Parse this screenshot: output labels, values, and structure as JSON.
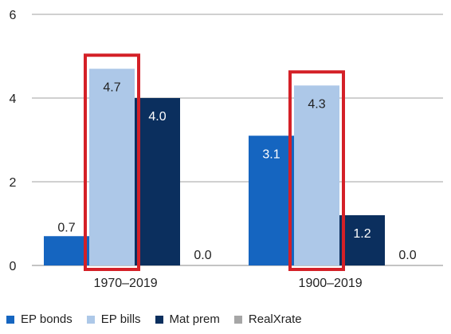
{
  "chart_data": {
    "type": "bar",
    "categories": [
      "1970–2019",
      "1900–2019"
    ],
    "series": [
      {
        "name": "EP bonds",
        "values": [
          0.7,
          3.1
        ],
        "color": "#1565C0"
      },
      {
        "name": "EP bills",
        "values": [
          4.7,
          4.3
        ],
        "color": "#ADC8E8"
      },
      {
        "name": "Mat prem",
        "values": [
          4.0,
          1.2
        ],
        "color": "#0B2F5E"
      },
      {
        "name": "RealXrate",
        "values": [
          0.0,
          0.0
        ],
        "color": "#A6A6A6"
      }
    ],
    "data_labels": [
      [
        "0.7",
        "3.1"
      ],
      [
        "4.7",
        "4.3"
      ],
      [
        "4.0",
        "1.2"
      ],
      [
        "0.0",
        "0.0"
      ]
    ],
    "yticks": [
      "0",
      "2",
      "4",
      "6"
    ],
    "ylim": [
      0,
      6
    ],
    "grid": true,
    "legend": "bottom",
    "highlight": {
      "series": "EP bills",
      "color": "#D42027"
    }
  }
}
